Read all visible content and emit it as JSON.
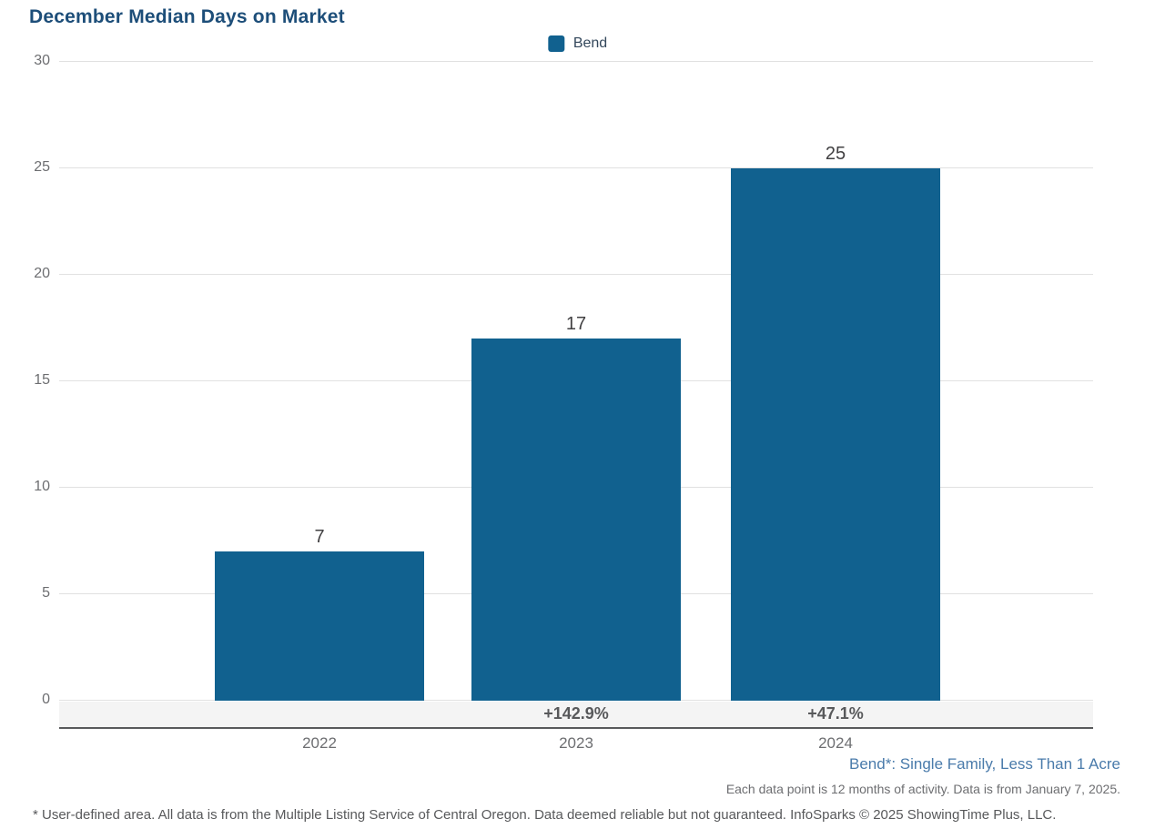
{
  "title": "December Median Days on Market",
  "legend": {
    "label": "Bend",
    "swatch_color": "#11618f"
  },
  "chart_data": {
    "type": "bar",
    "title": "December Median Days on Market",
    "categories": [
      "2022",
      "2023",
      "2024"
    ],
    "series": [
      {
        "name": "Bend",
        "values": [
          7,
          17,
          25
        ]
      }
    ],
    "value_labels": [
      "7",
      "17",
      "25"
    ],
    "change_labels": [
      "",
      "+142.9%",
      "+47.1%"
    ],
    "yticks": [
      0,
      5,
      10,
      15,
      20,
      25,
      30
    ],
    "ylim": [
      0,
      30
    ],
    "xlabel": "",
    "ylabel": "",
    "grid": true,
    "legend_position": "top-center",
    "bar_color": "#11618f",
    "gridline_color": "#e1e1e1",
    "axis_line_color": "#58595b"
  },
  "notes": {
    "series_definition": "Bend*: Single Family, Less Than 1 Acre",
    "data_point_note": "Each data point is 12 months of activity. Data is from January 7, 2025.",
    "disclaimer": "* User-defined area. All data is from the Multiple Listing Service of Central Oregon. Data deemed reliable but not guaranteed. InfoSparks © 2025 ShowingTime Plus, LLC."
  },
  "colors": {
    "title_text": "#1d4e79",
    "bar_fill": "#11618f",
    "series_note_text": "#4a7bab",
    "secondary_text": "#6d6e71",
    "value_label_text": "#414042",
    "percent_label_text": "#58595b"
  }
}
